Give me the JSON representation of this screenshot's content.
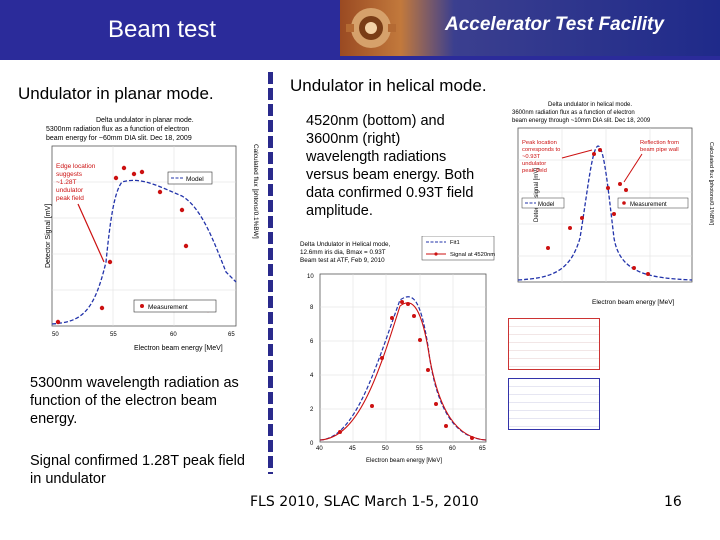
{
  "header": {
    "title": "Beam test",
    "banner_text": "Accelerator Test Facility"
  },
  "left": {
    "subtitle": "Undulator in planar mode.",
    "caption": "5300nm wavelength radiation as function of the electron beam energy.",
    "caption2": "Signal confirmed 1.28T peak field in undulator"
  },
  "right": {
    "subtitle": "Undulator in helical mode.",
    "note": "4520nm (bottom) and 3600nm (right) wavelength radiations versus beam energy. Both data confirmed 0.93T field amplitude."
  },
  "footer": {
    "text": "FLS 2010, SLAC March 1-5, 2010",
    "page": "16"
  },
  "fig_planar": {
    "title_lines": [
      "Delta undulator in planar mode.",
      "5300nm radiation flux as a  function of electron",
      "beam energy for ~60mm DIA slit. Dec 18, 2009"
    ],
    "ylabel": "Detector Signal [mV]",
    "y2label": "Calculated flux [phtons/0.1%BW]",
    "xlabel": "Electron beam energy [MeV]",
    "xticks": [
      "50",
      "55",
      "60",
      "65"
    ],
    "legend_model": "Model",
    "legend_measurement": "Measurement",
    "annotation": [
      "Edge location",
      "suggests",
      "~1.28T",
      "undulator",
      "peak field"
    ]
  },
  "fig_helical_top": {
    "title_lines": [
      "Delta undulator in helical mode.",
      "3600nm radiation flux as a  function of electron",
      "beam energy through ~10mm DIA slit. Dec 18, 2009"
    ],
    "ylabel": "Detector signal [mV]",
    "y2label": "Calculated flux [photons/0.1%BW]",
    "xlabel": "Electron beam energy [MeV]",
    "legend_model": "Model",
    "legend_measurement": "Measurement",
    "annotation_left": [
      "Peak location",
      "corresponds to",
      "~0.93T",
      "undulator",
      "peak field"
    ],
    "annotation_right": [
      "Reflection from",
      "beam pipe wall"
    ]
  },
  "fig_helical_bottom": {
    "title_lines": [
      "Delta Undulator in Helical mode,",
      "12.6mm iris dia, Bmax = 0.93T",
      "Beam test at ATF, Feb 9, 2010"
    ],
    "legend_fit": "Fit1",
    "legend_signal": "Signal at 4520nm",
    "xlabel": "Electron beam energy [MeV]",
    "yticks": [
      "0",
      "2",
      "4",
      "6",
      "8",
      "10"
    ],
    "xticks": [
      "40",
      "45",
      "50",
      "55",
      "60",
      "65"
    ]
  }
}
